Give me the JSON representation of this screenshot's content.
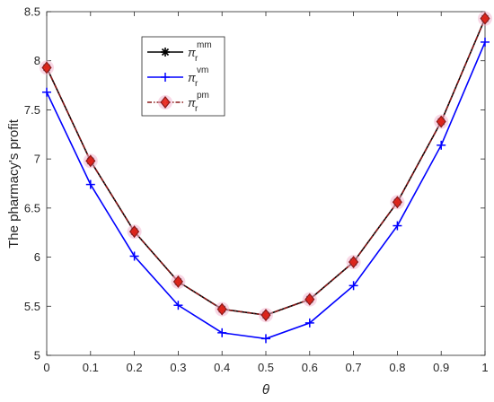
{
  "chart_data": {
    "type": "line",
    "xlabel": "θ",
    "ylabel": "The pharmacy's profit",
    "xlim": [
      0,
      1
    ],
    "ylim": [
      5,
      8.5
    ],
    "grid": false,
    "legend_position": "top-left",
    "x": [
      0,
      0.1,
      0.2,
      0.3,
      0.4,
      0.5,
      0.6,
      0.7,
      0.8,
      0.9,
      1
    ],
    "xticks": [
      "0",
      "0.1",
      "0.2",
      "0.3",
      "0.4",
      "0.5",
      "0.6",
      "0.7",
      "0.8",
      "0.9",
      "1"
    ],
    "yticks": [
      "5",
      "5.5",
      "6",
      "6.5",
      "7",
      "7.5",
      "8",
      "8.5"
    ],
    "series": [
      {
        "name": "π_r^mm",
        "symbol": "π",
        "sub": "r",
        "sup": "mm",
        "color": "#000000",
        "marker": "asterisk",
        "values": [
          7.93,
          6.98,
          6.26,
          5.75,
          5.47,
          5.41,
          5.57,
          5.95,
          6.56,
          7.38,
          8.43
        ]
      },
      {
        "name": "π_r^vm",
        "symbol": "π",
        "sub": "r",
        "sup": "vm",
        "color": "#0000ff",
        "marker": "plus",
        "values": [
          7.68,
          6.74,
          6.01,
          5.51,
          5.23,
          5.17,
          5.33,
          5.71,
          6.32,
          7.14,
          8.19
        ]
      },
      {
        "name": "π_r^pm",
        "symbol": "π",
        "sub": "r",
        "sup": "pm",
        "color": "#8b1a1a",
        "marker": "diamond",
        "marker_fill": "#e8190c",
        "values": [
          7.93,
          6.98,
          6.26,
          5.75,
          5.47,
          5.41,
          5.57,
          5.95,
          6.56,
          7.38,
          8.43
        ]
      }
    ]
  }
}
